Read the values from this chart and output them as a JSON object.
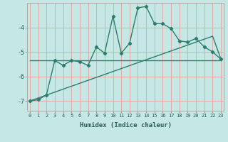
{
  "xlabel": "Humidex (Indice chaleur)",
  "background_color": "#c5e8e5",
  "line_color": "#2d7d6e",
  "grid_color_v": "#e8a0a0",
  "grid_color_h": "#e8a0a0",
  "x_values": [
    0,
    1,
    2,
    3,
    4,
    5,
    6,
    7,
    8,
    9,
    10,
    11,
    12,
    13,
    14,
    15,
    16,
    17,
    18,
    19,
    20,
    21,
    22,
    23
  ],
  "y_main": [
    -7.0,
    -6.95,
    -6.75,
    -5.35,
    -5.55,
    -5.35,
    -5.4,
    -5.55,
    -4.8,
    -5.05,
    -3.55,
    -5.05,
    -4.65,
    -3.2,
    -3.15,
    -3.85,
    -3.85,
    -4.05,
    -4.55,
    -4.6,
    -4.45,
    -4.8,
    -5.0,
    -5.3
  ],
  "y_trend1": [
    -7.0,
    -6.88,
    -6.76,
    -6.64,
    -6.52,
    -6.4,
    -6.28,
    -6.16,
    -6.04,
    -5.92,
    -5.8,
    -5.68,
    -5.56,
    -5.44,
    -5.32,
    -5.2,
    -5.08,
    -4.96,
    -4.84,
    -4.72,
    -4.6,
    -4.48,
    -4.36,
    -5.3
  ],
  "y_trend2": [
    -5.35,
    -5.35,
    -5.35,
    -5.35,
    -5.35,
    -5.35,
    -5.35,
    -5.35,
    -5.35,
    -5.35,
    -5.35,
    -5.35,
    -5.35,
    -5.35,
    -5.35,
    -5.35,
    -5.35,
    -5.35,
    -5.35,
    -5.35,
    -5.35,
    -5.35,
    -5.35,
    -5.35
  ],
  "ylim": [
    -7.4,
    -3.0
  ],
  "xlim": [
    -0.3,
    23.3
  ],
  "yticks": [
    -7,
    -6,
    -5,
    -4
  ],
  "xticks": [
    0,
    1,
    2,
    3,
    4,
    5,
    6,
    7,
    8,
    9,
    10,
    11,
    12,
    13,
    14,
    15,
    16,
    17,
    18,
    19,
    20,
    21,
    22,
    23
  ]
}
